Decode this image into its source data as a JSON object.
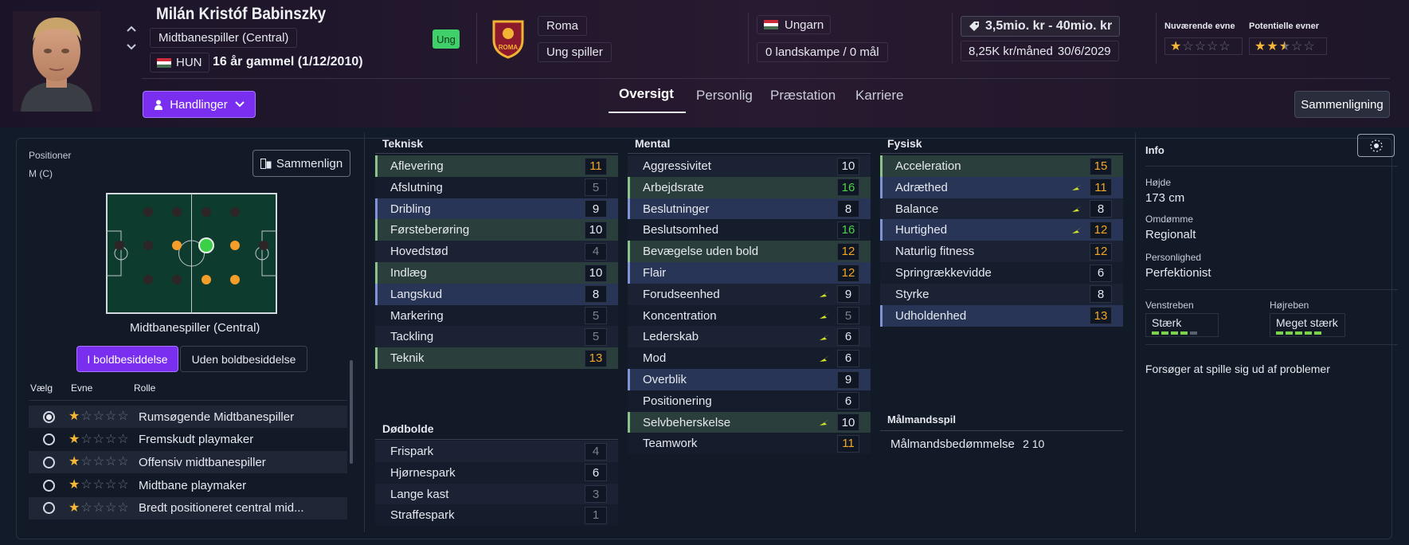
{
  "player": {
    "name": "Milán Kristóf Babinszky",
    "position": "Midtbanespiller (Central)",
    "nation_code": "HUN",
    "age_text": "16 år gammel (1/12/2010)",
    "badge": "Ung",
    "club": "Roma",
    "club_status": "Ung spiller",
    "club_badge_text": "ROMA",
    "nationality": "Ungarn",
    "caps": "0 landskampe / 0 mål",
    "value_range": "3,5mio. kr - 40mio. kr",
    "wage": "8,25K kr/måned",
    "contract_end": "30/6/2029",
    "current_ability_label": "Nuværende evne",
    "potential_ability_label": "Potentielle evner",
    "current_ability_stars": 1,
    "potential_ability_stars": 2.5
  },
  "header": {
    "actions_label": "Handlinger",
    "compare_label": "Sammenligning",
    "tabs": [
      "Oversigt",
      "Personlig",
      "Præstation",
      "Karriere"
    ],
    "active_tab": "Oversigt"
  },
  "positions_panel": {
    "title": "Positioner",
    "position_code": "M (C)",
    "compare_label": "Sammenlign",
    "pitch_caption": "Midtbanespiller (Central)",
    "toggle_on": "I boldbesiddelse",
    "toggle_off": "Uden boldbesiddelse",
    "col_select": "Vælg",
    "col_ability": "Evne",
    "col_role": "Rolle",
    "roles": [
      {
        "name": "Rumsøgende Midtbanespiller",
        "stars": 1,
        "selected": true
      },
      {
        "name": "Fremskudt playmaker",
        "stars": 1,
        "selected": false
      },
      {
        "name": "Offensiv midtbanespiller",
        "stars": 1,
        "selected": false
      },
      {
        "name": "Midtbane playmaker",
        "stars": 1,
        "selected": false
      },
      {
        "name": "Bredt positioneret central mid...",
        "stars": 1,
        "selected": false
      }
    ]
  },
  "attributes": {
    "technical_title": "Teknisk",
    "technical": [
      {
        "name": "Aflevering",
        "value": 11,
        "hl": "green",
        "arrow": false
      },
      {
        "name": "Afslutning",
        "value": 5,
        "hl": "none",
        "arrow": false
      },
      {
        "name": "Dribling",
        "value": 9,
        "hl": "blue",
        "arrow": false
      },
      {
        "name": "Førsteberøring",
        "value": 10,
        "hl": "green",
        "arrow": false
      },
      {
        "name": "Hovedstød",
        "value": 4,
        "hl": "none",
        "arrow": false
      },
      {
        "name": "Indlæg",
        "value": 10,
        "hl": "green",
        "arrow": false
      },
      {
        "name": "Langskud",
        "value": 8,
        "hl": "blue",
        "arrow": false
      },
      {
        "name": "Markering",
        "value": 5,
        "hl": "none",
        "arrow": false
      },
      {
        "name": "Tackling",
        "value": 5,
        "hl": "none",
        "arrow": false
      },
      {
        "name": "Teknik",
        "value": 13,
        "hl": "green",
        "arrow": false
      }
    ],
    "setpieces_title": "Dødbolde",
    "setpieces": [
      {
        "name": "Frispark",
        "value": 4,
        "hl": "none",
        "arrow": false
      },
      {
        "name": "Hjørnespark",
        "value": 6,
        "hl": "none",
        "arrow": false
      },
      {
        "name": "Lange kast",
        "value": 3,
        "hl": "none",
        "arrow": false
      },
      {
        "name": "Straffespark",
        "value": 1,
        "hl": "none",
        "arrow": false
      }
    ],
    "mental_title": "Mental",
    "mental": [
      {
        "name": "Aggressivitet",
        "value": 10,
        "hl": "none",
        "arrow": false
      },
      {
        "name": "Arbejdsrate",
        "value": 16,
        "hl": "green",
        "arrow": false
      },
      {
        "name": "Beslutninger",
        "value": 8,
        "hl": "blue",
        "arrow": false
      },
      {
        "name": "Beslutsomhed",
        "value": 16,
        "hl": "none",
        "arrow": false
      },
      {
        "name": "Bevægelse uden bold",
        "value": 12,
        "hl": "green",
        "arrow": false
      },
      {
        "name": "Flair",
        "value": 12,
        "hl": "blue",
        "arrow": false
      },
      {
        "name": "Forudseenhed",
        "value": 9,
        "hl": "none",
        "arrow": true
      },
      {
        "name": "Koncentration",
        "value": 5,
        "hl": "none",
        "arrow": true
      },
      {
        "name": "Lederskab",
        "value": 6,
        "hl": "none",
        "arrow": true
      },
      {
        "name": "Mod",
        "value": 6,
        "hl": "none",
        "arrow": true
      },
      {
        "name": "Overblik",
        "value": 9,
        "hl": "blue",
        "arrow": false
      },
      {
        "name": "Positionering",
        "value": 6,
        "hl": "none",
        "arrow": false
      },
      {
        "name": "Selvbeherskelse",
        "value": 10,
        "hl": "green",
        "arrow": true
      },
      {
        "name": "Teamwork",
        "value": 11,
        "hl": "none",
        "arrow": false
      }
    ],
    "physical_title": "Fysisk",
    "physical": [
      {
        "name": "Acceleration",
        "value": 15,
        "hl": "green",
        "arrow": false
      },
      {
        "name": "Adræthed",
        "value": 11,
        "hl": "blue",
        "arrow": true
      },
      {
        "name": "Balance",
        "value": 8,
        "hl": "none",
        "arrow": true
      },
      {
        "name": "Hurtighed",
        "value": 12,
        "hl": "blue",
        "arrow": true
      },
      {
        "name": "Naturlig fitness",
        "value": 12,
        "hl": "none",
        "arrow": false
      },
      {
        "name": "Springrækkevidde",
        "value": 6,
        "hl": "none",
        "arrow": false
      },
      {
        "name": "Styrke",
        "value": 8,
        "hl": "none",
        "arrow": false
      },
      {
        "name": "Udholdenhed",
        "value": 13,
        "hl": "blue",
        "arrow": false
      }
    ],
    "gk_title": "Målmandsspil",
    "gk_label": "Målmandsbedømmelse",
    "gk_value": "2 10"
  },
  "info": {
    "title": "Info",
    "height_label": "Højde",
    "height": "173 cm",
    "reputation_label": "Omdømme",
    "reputation": "Regionalt",
    "personality_label": "Personlighed",
    "personality": "Perfektionist",
    "left_foot_label": "Venstreben",
    "left_foot": "Stærk",
    "left_foot_level": 4,
    "right_foot_label": "Højreben",
    "right_foot": "Meget stærk",
    "right_foot_level": 5,
    "trait": "Forsøger at spille sig ud af problemer"
  },
  "colors": {
    "accent_purple": "#7a2ff0",
    "value_orange": "#f5a623",
    "value_green": "#4ed14a",
    "value_dim": "#7c8090",
    "foot_green": "#7ad34a"
  }
}
